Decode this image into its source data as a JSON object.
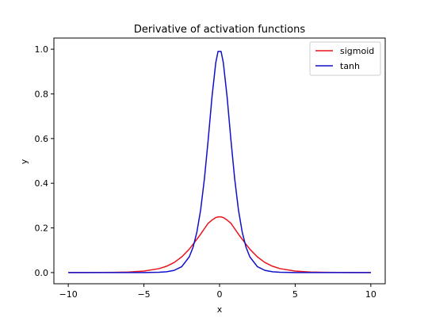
{
  "chart_data": {
    "type": "line",
    "title": "Derivative of activation functions",
    "xlabel": "x",
    "ylabel": "y",
    "xlim": [
      -10.95,
      10.95
    ],
    "ylim": [
      -0.05,
      1.05
    ],
    "xticks": [
      -10,
      -5,
      0,
      5,
      10
    ],
    "xtick_labels": [
      "−10",
      "−5",
      "0",
      "5",
      "10"
    ],
    "yticks": [
      0.0,
      0.2,
      0.4,
      0.6,
      0.8,
      1.0
    ],
    "ytick_labels": [
      "0.0",
      "0.2",
      "0.4",
      "0.6",
      "0.8",
      "1.0"
    ],
    "grid": false,
    "legend_position": "top-right",
    "x": [
      -10,
      -9,
      -8,
      -7,
      -6,
      -5,
      -4,
      -3.5,
      -3,
      -2.5,
      -2,
      -1.75,
      -1.5,
      -1.25,
      -1,
      -0.75,
      -0.5,
      -0.25,
      -0.1,
      0.1,
      0.25,
      0.5,
      0.75,
      1,
      1.25,
      1.5,
      1.75,
      2,
      2.5,
      3,
      3.5,
      4,
      5,
      6,
      7,
      8,
      9,
      10
    ],
    "series": [
      {
        "name": "sigmoid",
        "color": "#e8141a",
        "values": [
          5e-05,
          0.00012,
          0.00034,
          0.00091,
          0.00247,
          0.00665,
          0.01766,
          0.02845,
          0.04518,
          0.07011,
          0.10499,
          0.12683,
          0.14914,
          0.17184,
          0.19661,
          0.22074,
          0.235,
          0.24613,
          0.24938,
          0.24938,
          0.24613,
          0.235,
          0.22074,
          0.19661,
          0.17184,
          0.14914,
          0.12683,
          0.10499,
          0.07011,
          0.04518,
          0.02845,
          0.01766,
          0.00665,
          0.00247,
          0.00091,
          0.00034,
          0.00012,
          5e-05
        ]
      },
      {
        "name": "tanh",
        "color": "#1010c8",
        "values": [
          0.0,
          0.0,
          0.0,
          0.0,
          2e-05,
          0.00018,
          0.00134,
          0.00364,
          0.00987,
          0.0266,
          0.07065,
          0.1136,
          0.18071,
          0.28027,
          0.41997,
          0.59525,
          0.78645,
          0.9396,
          0.99005,
          0.99005,
          0.9396,
          0.78645,
          0.59525,
          0.41997,
          0.28027,
          0.18071,
          0.1136,
          0.07065,
          0.0266,
          0.00987,
          0.00364,
          0.00134,
          0.00018,
          2e-05,
          0.0,
          0.0,
          0.0,
          0.0
        ]
      }
    ]
  }
}
